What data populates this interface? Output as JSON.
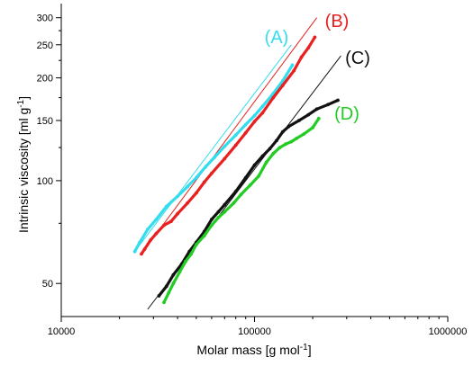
{
  "chart_data": {
    "type": "scatter",
    "x_scale": "log",
    "y_scale": "log",
    "xlim": [
      10000,
      1000000
    ],
    "ylim": [
      40,
      330
    ],
    "x_ticks": [
      10000,
      100000,
      1000000
    ],
    "x_tick_labels": [
      "10000",
      "100000",
      "1000000"
    ],
    "y_ticks": [
      50,
      100,
      150,
      200,
      250,
      300
    ],
    "y_tick_labels": [
      "50",
      "100",
      "150",
      "200",
      "250",
      "300"
    ],
    "xlabel": "Molar mass [g mol",
    "xlabel_sup": "-1",
    "xlabel_end": "]",
    "ylabel": "Intrinsic viscosity [ml g",
    "ylabel_sup": "-1",
    "ylabel_end": "]",
    "legend": "none; series labelled inline",
    "grid": false,
    "series": [
      {
        "name": "(A)",
        "color": "#33DDEE",
        "x": [
          24000,
          25500,
          28000,
          31000,
          35000,
          40000,
          45000,
          50000,
          56000,
          62000,
          70000,
          80000,
          90000,
          100000,
          110000,
          125000,
          140000,
          157000
        ],
        "y": [
          62,
          66,
          72,
          77,
          84,
          90,
          96,
          102,
          110,
          117,
          126,
          136,
          146,
          155,
          165,
          180,
          196,
          218
        ]
      },
      {
        "name": "(B)",
        "color": "#E82020",
        "x": [
          26000,
          27000,
          29000,
          31000,
          34000,
          37000,
          40000,
          45000,
          50000,
          55000,
          60000,
          70000,
          80000,
          90000,
          100000,
          110000,
          125000,
          140000,
          160000,
          175000,
          190000,
          205000
        ],
        "y": [
          61,
          63,
          67,
          70,
          74,
          76,
          80,
          86,
          92,
          99,
          105,
          116,
          127,
          138,
          149,
          158,
          175,
          190,
          210,
          230,
          245,
          263
        ]
      },
      {
        "name": "(C)",
        "color": "#111111",
        "x": [
          32000,
          35000,
          38000,
          42000,
          46000,
          50000,
          55000,
          60000,
          65000,
          70000,
          80000,
          90000,
          100000,
          110000,
          120000,
          130000,
          140000,
          150000,
          170000,
          190000,
          210000,
          240000,
          270000
        ],
        "y": [
          46,
          49,
          53,
          57,
          62,
          66,
          71,
          77,
          81,
          85,
          93,
          102,
          111,
          118,
          124,
          131,
          139,
          144,
          150,
          156,
          162,
          167,
          172
        ]
      },
      {
        "name": "(D)",
        "color": "#22CC22",
        "x": [
          34000,
          36000,
          38000,
          41000,
          44000,
          47000,
          50000,
          55000,
          60000,
          65000,
          70000,
          78000,
          85000,
          95000,
          105000,
          115000,
          125000,
          135000,
          145000,
          155000,
          165000,
          180000,
          200000,
          215000
        ],
        "y": [
          44,
          47,
          50,
          54,
          58,
          61,
          65,
          69,
          74,
          78,
          81,
          86,
          91,
          97,
          103,
          113,
          120,
          125,
          128,
          130,
          133,
          137,
          143,
          152
        ]
      }
    ],
    "reference_lines": [
      {
        "for": "(A)",
        "color": "#33DDEE",
        "x": [
          24000,
          155000
        ],
        "y": [
          62,
          250
        ]
      },
      {
        "for": "(B)",
        "color": "#E82020",
        "x": [
          26000,
          210000
        ],
        "y": [
          61,
          300
        ]
      },
      {
        "for": "(C)",
        "color": "#111111",
        "x": [
          28000,
          280000
        ],
        "y": [
          42,
          232
        ]
      }
    ]
  }
}
